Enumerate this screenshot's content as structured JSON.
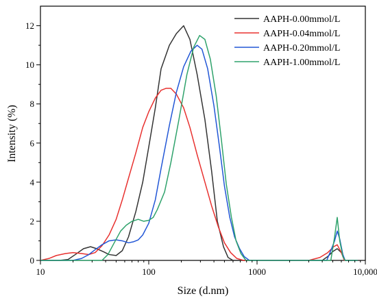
{
  "chart_data": {
    "type": "line",
    "title": "",
    "xlabel": "Size (d.nm)",
    "ylabel": "Intensity (%)",
    "xscale": "log",
    "xlim": [
      10,
      10000
    ],
    "ylim": [
      0,
      13
    ],
    "x_ticks": [
      10,
      100,
      1000,
      10000
    ],
    "x_tick_labels": [
      "10",
      "100",
      "1000",
      "10,000"
    ],
    "y_ticks": [
      0,
      2,
      4,
      6,
      8,
      10,
      12
    ],
    "y_tick_labels": [
      "0",
      "2",
      "4",
      "6",
      "8",
      "10",
      "12"
    ],
    "grid": false,
    "legend_position": "top-right",
    "series": [
      {
        "name": "AAPH-0.00mmol/L",
        "color": "#333333",
        "points": [
          [
            10,
            0
          ],
          [
            15,
            0
          ],
          [
            18,
            0.05
          ],
          [
            21,
            0.3
          ],
          [
            25,
            0.6
          ],
          [
            29,
            0.7
          ],
          [
            33,
            0.6
          ],
          [
            38,
            0.45
          ],
          [
            43,
            0.3
          ],
          [
            50,
            0.25
          ],
          [
            57,
            0.5
          ],
          [
            65,
            1.2
          ],
          [
            76,
            2.5
          ],
          [
            88,
            4.0
          ],
          [
            100,
            5.8
          ],
          [
            115,
            7.8
          ],
          [
            130,
            9.8
          ],
          [
            155,
            11.0
          ],
          [
            180,
            11.6
          ],
          [
            210,
            12.0
          ],
          [
            240,
            11.3
          ],
          [
            280,
            9.5
          ],
          [
            330,
            7.2
          ],
          [
            380,
            4.6
          ],
          [
            430,
            2.0
          ],
          [
            490,
            0.7
          ],
          [
            540,
            0.15
          ],
          [
            600,
            0
          ],
          [
            700,
            0
          ],
          [
            1000,
            0
          ],
          [
            4000,
            0
          ],
          [
            4500,
            0.2
          ],
          [
            5000,
            0.45
          ],
          [
            5500,
            0.6
          ],
          [
            6000,
            0.4
          ],
          [
            6500,
            0
          ],
          [
            8500,
            0
          ]
        ]
      },
      {
        "name": "AAPH-0.04mmol/L",
        "color": "#e8312f",
        "points": [
          [
            10,
            0
          ],
          [
            12,
            0.1
          ],
          [
            14,
            0.25
          ],
          [
            17,
            0.35
          ],
          [
            20,
            0.4
          ],
          [
            24,
            0.35
          ],
          [
            28,
            0.3
          ],
          [
            32,
            0.4
          ],
          [
            37,
            0.75
          ],
          [
            43,
            1.3
          ],
          [
            50,
            2.1
          ],
          [
            57,
            3.1
          ],
          [
            65,
            4.2
          ],
          [
            76,
            5.5
          ],
          [
            88,
            6.8
          ],
          [
            100,
            7.6
          ],
          [
            115,
            8.3
          ],
          [
            130,
            8.7
          ],
          [
            145,
            8.8
          ],
          [
            160,
            8.8
          ],
          [
            180,
            8.5
          ],
          [
            210,
            7.8
          ],
          [
            240,
            6.8
          ],
          [
            280,
            5.4
          ],
          [
            330,
            4.0
          ],
          [
            380,
            2.8
          ],
          [
            440,
            1.7
          ],
          [
            500,
            0.9
          ],
          [
            570,
            0.4
          ],
          [
            650,
            0.1
          ],
          [
            750,
            0
          ],
          [
            1000,
            0
          ],
          [
            3000,
            0
          ],
          [
            3800,
            0.15
          ],
          [
            4500,
            0.4
          ],
          [
            5100,
            0.7
          ],
          [
            5500,
            0.8
          ],
          [
            6000,
            0.4
          ],
          [
            6400,
            0
          ],
          [
            8500,
            0
          ]
        ]
      },
      {
        "name": "AAPH-0.20mmol/L",
        "color": "#2156d6",
        "points": [
          [
            10,
            0
          ],
          [
            20,
            0
          ],
          [
            24,
            0.1
          ],
          [
            28,
            0.3
          ],
          [
            32,
            0.55
          ],
          [
            37,
            0.8
          ],
          [
            43,
            1.0
          ],
          [
            50,
            1.05
          ],
          [
            57,
            1.0
          ],
          [
            65,
            0.9
          ],
          [
            72,
            0.95
          ],
          [
            80,
            1.05
          ],
          [
            88,
            1.3
          ],
          [
            100,
            1.9
          ],
          [
            115,
            3.1
          ],
          [
            130,
            4.7
          ],
          [
            155,
            6.9
          ],
          [
            180,
            8.6
          ],
          [
            210,
            9.9
          ],
          [
            245,
            10.7
          ],
          [
            280,
            11.0
          ],
          [
            310,
            10.8
          ],
          [
            350,
            9.8
          ],
          [
            400,
            7.9
          ],
          [
            450,
            5.8
          ],
          [
            500,
            3.8
          ],
          [
            560,
            2.2
          ],
          [
            620,
            1.2
          ],
          [
            690,
            0.6
          ],
          [
            760,
            0.2
          ],
          [
            850,
            0
          ],
          [
            1000,
            0
          ],
          [
            4400,
            0
          ],
          [
            4800,
            0.5
          ],
          [
            5200,
            1.0
          ],
          [
            5500,
            1.5
          ],
          [
            5800,
            1.1
          ],
          [
            6200,
            0.3
          ],
          [
            6500,
            0
          ],
          [
            8500,
            0
          ]
        ]
      },
      {
        "name": "AAPH-1.00mmol/L",
        "color": "#2ea26b",
        "points": [
          [
            10,
            0
          ],
          [
            37,
            0
          ],
          [
            42,
            0.3
          ],
          [
            48,
            0.9
          ],
          [
            55,
            1.5
          ],
          [
            62,
            1.8
          ],
          [
            70,
            2.0
          ],
          [
            80,
            2.1
          ],
          [
            90,
            2.0
          ],
          [
            100,
            2.05
          ],
          [
            110,
            2.2
          ],
          [
            120,
            2.6
          ],
          [
            140,
            3.5
          ],
          [
            160,
            5.0
          ],
          [
            190,
            7.2
          ],
          [
            225,
            9.5
          ],
          [
            260,
            10.9
          ],
          [
            295,
            11.5
          ],
          [
            330,
            11.3
          ],
          [
            370,
            10.3
          ],
          [
            420,
            8.4
          ],
          [
            470,
            6.1
          ],
          [
            520,
            3.9
          ],
          [
            580,
            2.2
          ],
          [
            640,
            1.0
          ],
          [
            710,
            0.35
          ],
          [
            790,
            0
          ],
          [
            1000,
            0
          ],
          [
            4800,
            0
          ],
          [
            5200,
            1.2
          ],
          [
            5500,
            2.2
          ],
          [
            5800,
            1.0
          ],
          [
            6200,
            0.2
          ],
          [
            6500,
            0
          ],
          [
            8500,
            0
          ]
        ]
      }
    ]
  }
}
